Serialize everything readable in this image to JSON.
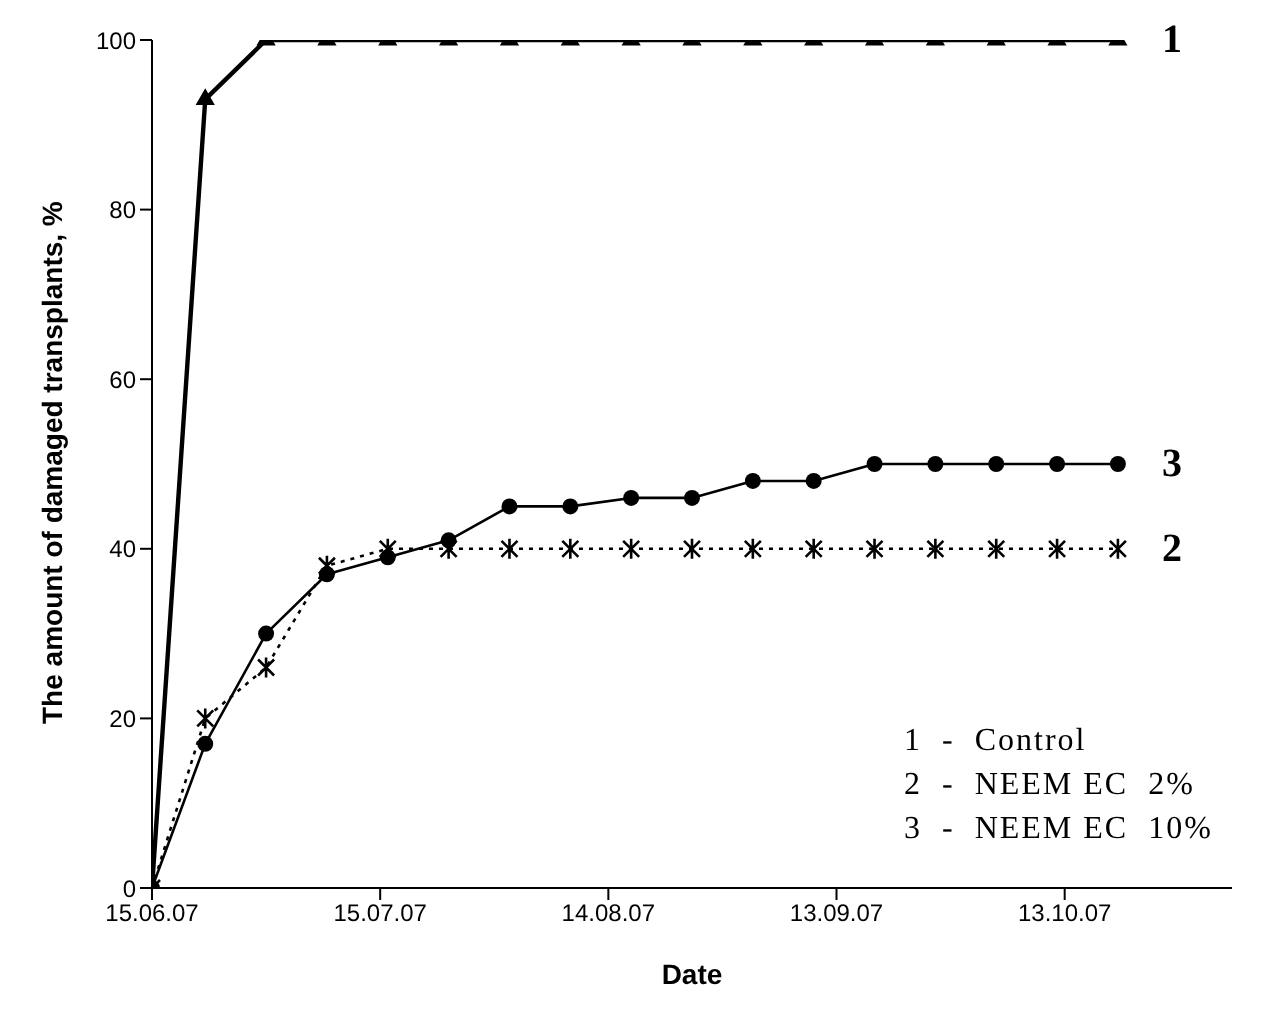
{
  "chart_data": {
    "type": "line",
    "xlabel": "Date",
    "ylabel": "The amount of damaged transplants, %",
    "x": [
      "2007-06-15",
      "2007-06-22",
      "2007-06-30",
      "2007-07-08",
      "2007-07-16",
      "2007-07-24",
      "2007-08-01",
      "2007-08-09",
      "2007-08-17",
      "2007-08-25",
      "2007-09-02",
      "2007-09-10",
      "2007-09-18",
      "2007-09-26",
      "2007-10-04",
      "2007-10-12",
      "2007-10-20"
    ],
    "series": [
      {
        "name": "2",
        "color": "#000000",
        "marker": "cross",
        "line_style": "dotted",
        "values": [
          0,
          20,
          26,
          38,
          40,
          40,
          40,
          40,
          40,
          40,
          40,
          40,
          40,
          40,
          40,
          40,
          40
        ]
      },
      {
        "name": "3",
        "color": "#000000",
        "marker": "circle",
        "line_style": "solid",
        "values": [
          0,
          17,
          30,
          37,
          39,
          41,
          45,
          45,
          46,
          46,
          48,
          48,
          50,
          50,
          50,
          50,
          50
        ]
      },
      {
        "name": "1",
        "color": "#000000",
        "marker": "triangle",
        "line_style": "solid",
        "values": [
          0,
          93,
          100,
          100,
          100,
          100,
          100,
          100,
          100,
          100,
          100,
          100,
          100,
          100,
          100,
          100,
          100
        ]
      }
    ],
    "xlim": [
      "2007-06-15",
      "2007-11-04"
    ],
    "xticks": [
      {
        "value": "2007-06-15",
        "label": "15.06.07"
      },
      {
        "value": "2007-07-15",
        "label": "15.07.07"
      },
      {
        "value": "2007-08-14",
        "label": "14.08.07"
      },
      {
        "value": "2007-09-13",
        "label": "13.09.07"
      },
      {
        "value": "2007-10-13",
        "label": "13.10.07"
      }
    ],
    "ylim": [
      0,
      100
    ],
    "yticks": [
      0,
      20,
      40,
      60,
      80,
      100
    ],
    "grid": false,
    "legend": false,
    "annotations": [
      "1  -  Control",
      "2  -  NEEM EC  2%",
      "3  -  NEEM EC  10%"
    ]
  }
}
